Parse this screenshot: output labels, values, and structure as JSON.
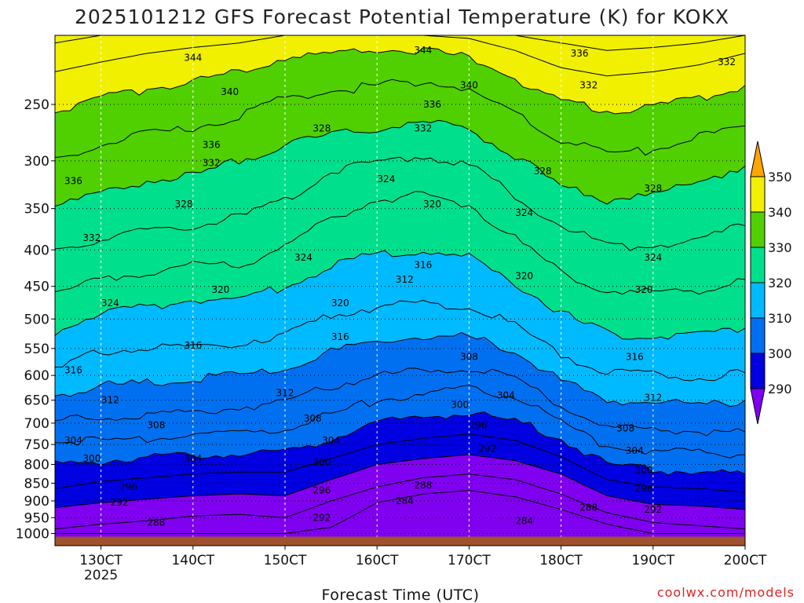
{
  "chart_data": {
    "type": "contour",
    "title": "2025101212 GFS Forecast Potential Temperature (K) for KOKX",
    "xlabel": "Forecast Time (UTC)",
    "credit": "coolwx.com/models",
    "x_ticks": [
      {
        "x": "130CT",
        "sub": "2025"
      },
      {
        "x": "140CT",
        "sub": ""
      },
      {
        "x": "150CT",
        "sub": ""
      },
      {
        "x": "160CT",
        "sub": ""
      },
      {
        "x": "170CT",
        "sub": ""
      },
      {
        "x": "180CT",
        "sub": ""
      },
      {
        "x": "190CT",
        "sub": ""
      },
      {
        "x": "200CT",
        "sub": ""
      }
    ],
    "xlim_days": [
      12.5,
      20
    ],
    "y_scale": "log-pressure",
    "ylim_hpa": [
      1040,
      200
    ],
    "y_ticks": [
      250,
      300,
      350,
      400,
      450,
      500,
      550,
      600,
      650,
      700,
      750,
      800,
      850,
      900,
      950,
      1000
    ],
    "grid": true,
    "legend": {
      "placement": "right",
      "levels": [
        350,
        340,
        330,
        320,
        310,
        300,
        290
      ],
      "colors": [
        "#ffa500",
        "#f0f000",
        "#50d000",
        "#00e08c",
        "#00baff",
        "#0070f0",
        "#0000e0",
        "#8000f0"
      ]
    },
    "contour_interval": 4,
    "isentropes": [
      {
        "theta": 284,
        "p": [
          1000,
          1000,
          1000,
          1000,
          1000,
          1000,
          980,
          905,
          880,
          870,
          888,
          925,
          970,
          1000,
          1000,
          1000
        ]
      },
      {
        "theta": 288,
        "p": [
          985,
          970,
          960,
          945,
          940,
          950,
          900,
          860,
          835,
          825,
          840,
          880,
          935,
          965,
          975,
          985
        ]
      },
      {
        "theta": 292,
        "p": [
          920,
          905,
          895,
          885,
          880,
          885,
          840,
          800,
          785,
          775,
          790,
          825,
          885,
          910,
          915,
          925
        ]
      },
      {
        "theta": 296,
        "p": [
          865,
          845,
          835,
          825,
          820,
          820,
          785,
          750,
          735,
          725,
          740,
          780,
          840,
          860,
          865,
          875
        ]
      },
      {
        "theta": 300,
        "p": [
          800,
          790,
          785,
          775,
          770,
          770,
          735,
          700,
          685,
          680,
          695,
          735,
          800,
          815,
          820,
          825
        ]
      },
      {
        "theta": 304,
        "p": [
          745,
          740,
          735,
          725,
          720,
          710,
          680,
          650,
          635,
          625,
          645,
          695,
          755,
          765,
          770,
          775
        ]
      },
      {
        "theta": 308,
        "p": [
          695,
          690,
          680,
          675,
          665,
          655,
          620,
          600,
          590,
          585,
          605,
          660,
          710,
          715,
          720,
          720
        ]
      },
      {
        "theta": 312,
        "p": [
          640,
          620,
          615,
          605,
          600,
          590,
          555,
          540,
          530,
          530,
          555,
          610,
          650,
          655,
          660,
          650
        ]
      },
      {
        "theta": 316,
        "p": [
          590,
          555,
          550,
          545,
          540,
          525,
          495,
          480,
          475,
          480,
          510,
          560,
          595,
          600,
          605,
          595
        ]
      },
      {
        "theta": 320,
        "p": [
          520,
          490,
          480,
          470,
          470,
          450,
          420,
          405,
          400,
          410,
          445,
          490,
          525,
          530,
          525,
          515
        ]
      },
      {
        "theta": 324,
        "p": [
          460,
          440,
          430,
          420,
          420,
          395,
          360,
          340,
          335,
          345,
          385,
          430,
          455,
          460,
          455,
          440
        ]
      },
      {
        "theta": 328,
        "p": [
          400,
          385,
          375,
          370,
          360,
          340,
          310,
          300,
          295,
          305,
          335,
          370,
          395,
          395,
          385,
          370
        ]
      },
      {
        "theta": 332,
        "p": [
          345,
          335,
          320,
          315,
          300,
          285,
          275,
          270,
          265,
          270,
          295,
          325,
          340,
          335,
          320,
          305
        ]
      },
      {
        "theta": 336,
        "p": [
          300,
          285,
          275,
          270,
          260,
          245,
          240,
          235,
          232,
          238,
          258,
          280,
          292,
          290,
          278,
          268
        ]
      },
      {
        "theta": 340,
        "p": [
          255,
          245,
          238,
          233,
          225,
          215,
          212,
          210,
          210,
          215,
          230,
          248,
          255,
          252,
          245,
          235
        ]
      },
      {
        "theta": 344,
        "p": [
          225,
          218,
          212,
          208,
          205,
          200,
          200,
          200,
          200,
          202,
          210,
          222,
          228,
          225,
          220,
          212
        ]
      },
      {
        "theta": 348,
        "p": [
          205,
          200,
          200,
          200,
          200,
          200,
          200,
          200,
          200,
          200,
          200,
          205,
          210,
          208,
          205,
          200
        ]
      }
    ],
    "x_samples_days": [
      12.5,
      13.0,
      13.5,
      14.0,
      14.5,
      15.0,
      15.5,
      16.0,
      16.5,
      17.0,
      17.5,
      18.0,
      18.5,
      19.0,
      19.5,
      20.0
    ],
    "contour_labels": [
      {
        "text": "344",
        "x": 14.0,
        "p": 215
      },
      {
        "text": "344",
        "x": 16.5,
        "p": 210
      },
      {
        "text": "340",
        "x": 14.4,
        "p": 240
      },
      {
        "text": "340",
        "x": 17.0,
        "p": 235
      },
      {
        "text": "336",
        "x": 18.2,
        "p": 212
      },
      {
        "text": "336",
        "x": 12.7,
        "p": 320
      },
      {
        "text": "336",
        "x": 14.2,
        "p": 285
      },
      {
        "text": "336",
        "x": 16.6,
        "p": 250
      },
      {
        "text": "332",
        "x": 19.8,
        "p": 218
      },
      {
        "text": "332",
        "x": 18.3,
        "p": 235
      },
      {
        "text": "332",
        "x": 12.9,
        "p": 385
      },
      {
        "text": "332",
        "x": 14.2,
        "p": 302
      },
      {
        "text": "332",
        "x": 16.5,
        "p": 270
      },
      {
        "text": "328",
        "x": 15.4,
        "p": 270
      },
      {
        "text": "328",
        "x": 13.9,
        "p": 345
      },
      {
        "text": "328",
        "x": 17.8,
        "p": 310
      },
      {
        "text": "328",
        "x": 19.0,
        "p": 328
      },
      {
        "text": "324",
        "x": 16.1,
        "p": 318
      },
      {
        "text": "324",
        "x": 15.2,
        "p": 410
      },
      {
        "text": "324",
        "x": 13.1,
        "p": 475
      },
      {
        "text": "324",
        "x": 17.6,
        "p": 355
      },
      {
        "text": "324",
        "x": 19.0,
        "p": 410
      },
      {
        "text": "320",
        "x": 16.6,
        "p": 345
      },
      {
        "text": "320",
        "x": 14.3,
        "p": 455
      },
      {
        "text": "320",
        "x": 15.6,
        "p": 475
      },
      {
        "text": "320",
        "x": 17.6,
        "p": 435
      },
      {
        "text": "320",
        "x": 18.9,
        "p": 455
      },
      {
        "text": "316",
        "x": 16.5,
        "p": 420
      },
      {
        "text": "316",
        "x": 15.6,
        "p": 530
      },
      {
        "text": "316",
        "x": 14.0,
        "p": 545
      },
      {
        "text": "316",
        "x": 12.7,
        "p": 590
      },
      {
        "text": "316",
        "x": 18.8,
        "p": 565
      },
      {
        "text": "312",
        "x": 16.3,
        "p": 440
      },
      {
        "text": "312",
        "x": 15.0,
        "p": 635
      },
      {
        "text": "312",
        "x": 13.1,
        "p": 650
      },
      {
        "text": "312",
        "x": 19.0,
        "p": 645
      },
      {
        "text": "308",
        "x": 17.0,
        "p": 565
      },
      {
        "text": "308",
        "x": 15.3,
        "p": 690
      },
      {
        "text": "308",
        "x": 13.6,
        "p": 705
      },
      {
        "text": "308",
        "x": 18.7,
        "p": 712
      },
      {
        "text": "304",
        "x": 12.7,
        "p": 740
      },
      {
        "text": "304",
        "x": 14.0,
        "p": 785
      },
      {
        "text": "304",
        "x": 15.5,
        "p": 740
      },
      {
        "text": "304",
        "x": 17.4,
        "p": 640
      },
      {
        "text": "304",
        "x": 18.8,
        "p": 765
      },
      {
        "text": "300",
        "x": 12.9,
        "p": 785
      },
      {
        "text": "300",
        "x": 15.4,
        "p": 795
      },
      {
        "text": "300",
        "x": 16.9,
        "p": 660
      },
      {
        "text": "300",
        "x": 18.9,
        "p": 815
      },
      {
        "text": "296",
        "x": 13.3,
        "p": 860
      },
      {
        "text": "296",
        "x": 15.4,
        "p": 870
      },
      {
        "text": "296",
        "x": 17.1,
        "p": 705
      },
      {
        "text": "296",
        "x": 18.9,
        "p": 865
      },
      {
        "text": "292",
        "x": 13.2,
        "p": 905
      },
      {
        "text": "292",
        "x": 15.4,
        "p": 950
      },
      {
        "text": "292",
        "x": 17.2,
        "p": 760
      },
      {
        "text": "292",
        "x": 19.0,
        "p": 925
      },
      {
        "text": "288",
        "x": 13.6,
        "p": 965
      },
      {
        "text": "288",
        "x": 16.5,
        "p": 855
      },
      {
        "text": "288",
        "x": 18.3,
        "p": 920
      },
      {
        "text": "284",
        "x": 16.3,
        "p": 900
      },
      {
        "text": "284",
        "x": 17.6,
        "p": 960
      }
    ],
    "ground": {
      "color": "#a0522d",
      "p_top": 1010
    }
  }
}
